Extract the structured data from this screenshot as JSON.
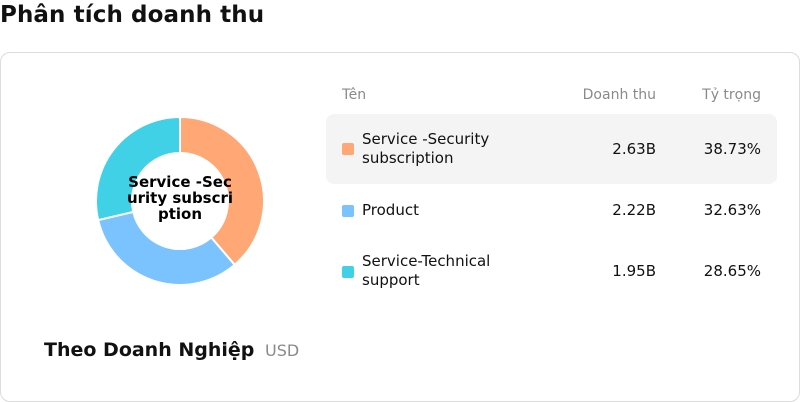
{
  "page_title": "Phân tích doanh thu",
  "chart": {
    "center_label": "Service -Security subscription",
    "footer_title": "Theo Doanh Nghiệp",
    "footer_unit": "USD"
  },
  "table": {
    "headers": {
      "name": "Tên",
      "revenue": "Doanh thu",
      "share": "Tỷ trọng"
    },
    "rows": [
      {
        "name": "Service -Security subscription",
        "revenue": "2.63B",
        "share": "38.73%",
        "color": "#FFA775",
        "active": true
      },
      {
        "name": "Product",
        "revenue": "2.22B",
        "share": "32.63%",
        "color": "#7AC3FF",
        "active": false
      },
      {
        "name": "Service-Technical support",
        "revenue": "1.95B",
        "share": "28.65%",
        "color": "#40D1E6",
        "active": false
      }
    ]
  },
  "chart_data": {
    "type": "pie",
    "variant": "donut",
    "categories": [
      "Service -Security subscription",
      "Product",
      "Service-Technical support"
    ],
    "values": [
      38.73,
      32.63,
      28.65
    ],
    "revenue": [
      "2.63B",
      "2.22B",
      "1.95B"
    ],
    "colors": [
      "#FFA775",
      "#7AC3FF",
      "#40D1E6"
    ],
    "unit": "USD",
    "highlighted": "Service -Security subscription"
  }
}
